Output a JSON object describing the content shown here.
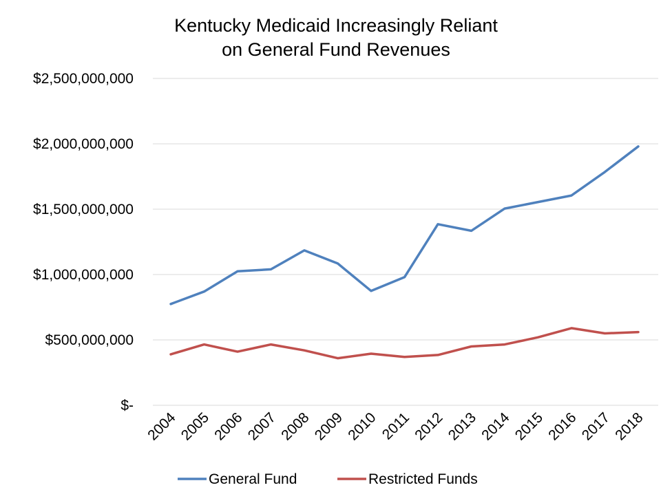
{
  "chart_data": {
    "type": "line",
    "title": [
      "Kentucky Medicaid Increasingly Reliant",
      "on General Fund Revenues"
    ],
    "xlabel": "",
    "ylabel": "",
    "categories": [
      "2004",
      "2005",
      "2006",
      "2007",
      "2008",
      "2009",
      "2010",
      "2011",
      "2012",
      "2013",
      "2014",
      "2015",
      "2016",
      "2017",
      "2018"
    ],
    "ylim": [
      0,
      2500000000
    ],
    "yticks": [
      0,
      500000000,
      1000000000,
      1500000000,
      2000000000,
      2500000000
    ],
    "ytick_labels": [
      "$-",
      "$500,000,000",
      "$1,000,000,000",
      "$1,500,000,000",
      "$2,000,000,000",
      "$2,500,000,000"
    ],
    "grid": true,
    "legend_position": "bottom",
    "series": [
      {
        "name": "General Fund",
        "color": "#4f81bd",
        "values": [
          775000000,
          870000000,
          1025000000,
          1040000000,
          1185000000,
          1085000000,
          875000000,
          980000000,
          1385000000,
          1335000000,
          1505000000,
          1555000000,
          1605000000,
          1785000000,
          1980000000
        ]
      },
      {
        "name": "Restricted Funds",
        "color": "#c0504d",
        "values": [
          390000000,
          465000000,
          410000000,
          465000000,
          420000000,
          360000000,
          395000000,
          370000000,
          385000000,
          450000000,
          465000000,
          520000000,
          590000000,
          550000000,
          560000000
        ]
      }
    ]
  }
}
